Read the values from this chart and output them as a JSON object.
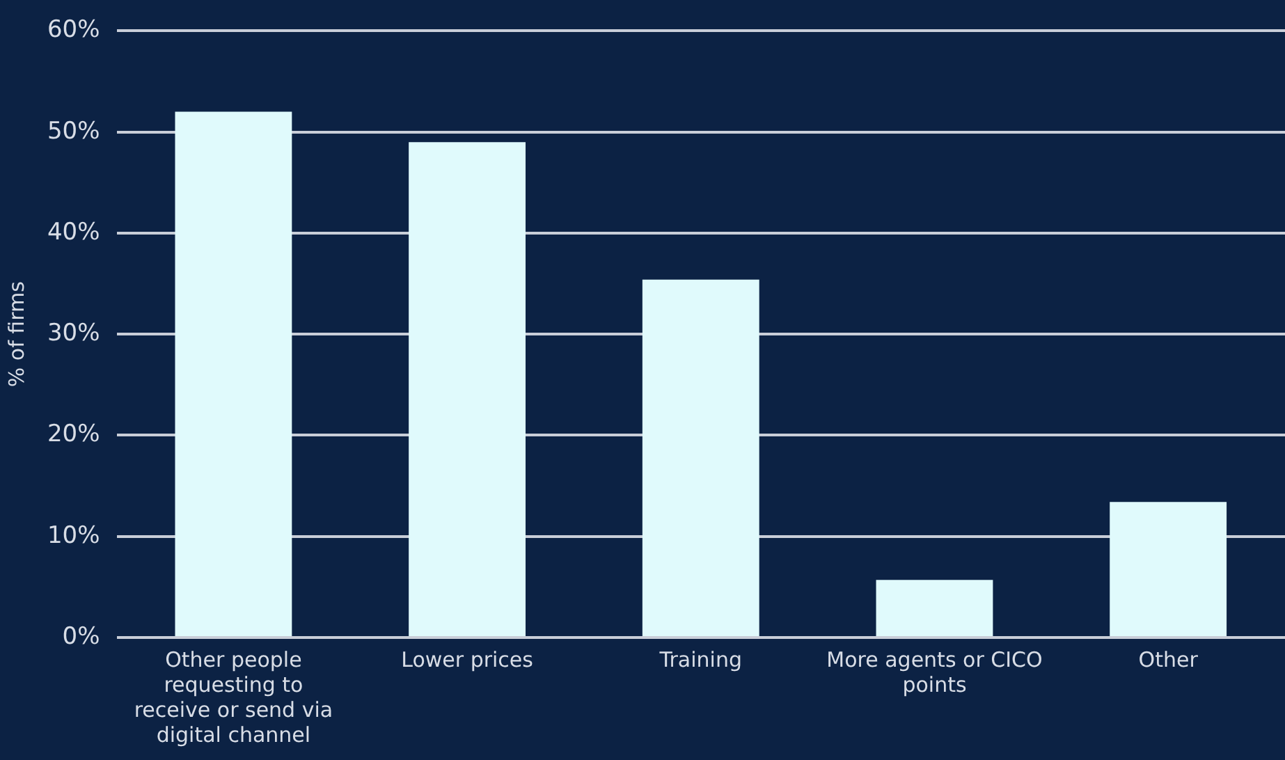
{
  "chart_data": {
    "type": "bar",
    "ylabel": "% of firms",
    "categories": [
      "Other people requesting to receive or send via digital channel",
      "Lower prices",
      "Training",
      "More agents or CICO points",
      "Other"
    ],
    "values": [
      52,
      49,
      35.4,
      5.7,
      13.4
    ],
    "color": "#e0fafc",
    "ylim": [
      0,
      60
    ],
    "yticks": [
      {
        "value": 0,
        "label": "0%"
      },
      {
        "value": 10,
        "label": "10%"
      },
      {
        "value": 20,
        "label": "20%"
      },
      {
        "value": 30,
        "label": "30%"
      },
      {
        "value": 40,
        "label": "40%"
      },
      {
        "value": 50,
        "label": "50%"
      },
      {
        "value": 60,
        "label": "60%"
      }
    ],
    "grid": "y",
    "legend": false
  }
}
